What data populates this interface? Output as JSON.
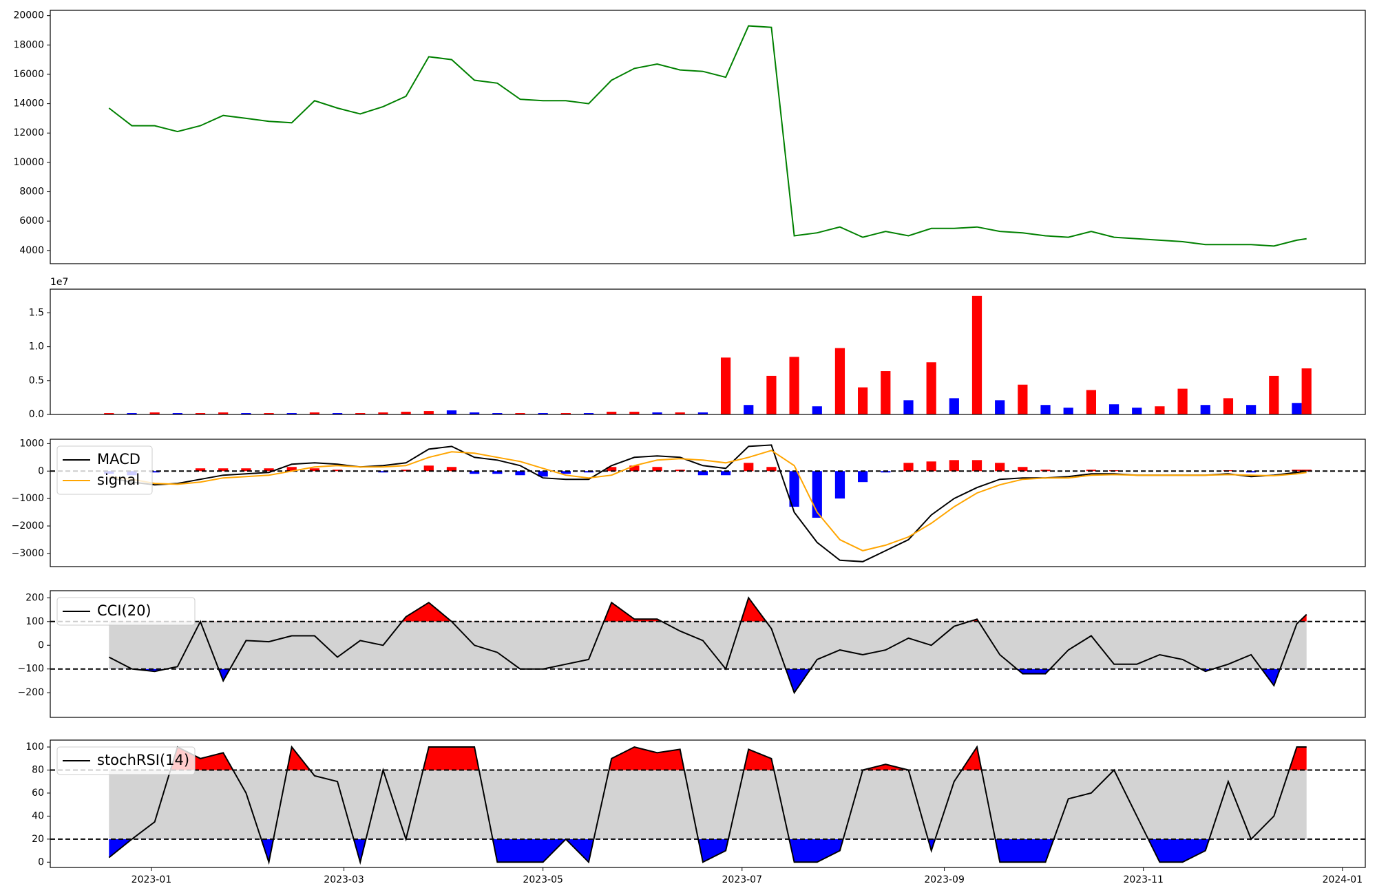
{
  "chart_data": [
    {
      "type": "line",
      "color": "green",
      "x": [
        -13,
        -6,
        1,
        8,
        15,
        22,
        29,
        36,
        43,
        50,
        57,
        64,
        71,
        78,
        85,
        92,
        99,
        106,
        113,
        120,
        127,
        134,
        141,
        148,
        155,
        162,
        169,
        176,
        183,
        190,
        197,
        204,
        211,
        218,
        225,
        232,
        239,
        246,
        253,
        260,
        267,
        274,
        281,
        288,
        295,
        302,
        309,
        316,
        323,
        330,
        337,
        344,
        351,
        354
      ],
      "values": [
        13700,
        12500,
        12500,
        12100,
        12500,
        13200,
        13000,
        12800,
        12700,
        14200,
        13700,
        13300,
        13800,
        14500,
        17200,
        17000,
        15600,
        15400,
        14300,
        14200,
        14200,
        14000,
        15600,
        16400,
        16700,
        16300,
        16200,
        15800,
        19300,
        19200,
        5000,
        5200,
        5600,
        4900,
        5300,
        5000,
        5500,
        5500,
        5600,
        5300,
        5200,
        5000,
        4900,
        5300,
        4900,
        4800,
        4700,
        4600,
        4400,
        4400,
        4400,
        4300,
        4700,
        4800
      ],
      "xlim": [
        -31,
        372
      ],
      "ylim": [
        3100,
        20360
      ],
      "yticks": [
        4000,
        6000,
        8000,
        10000,
        12000,
        14000,
        16000,
        18000,
        20000
      ]
    },
    {
      "type": "bar",
      "offset_text": "1e7",
      "x": [
        -13,
        -6,
        1,
        8,
        15,
        22,
        29,
        36,
        43,
        50,
        57,
        64,
        71,
        78,
        85,
        92,
        99,
        106,
        113,
        120,
        127,
        134,
        141,
        148,
        155,
        162,
        169,
        176,
        183,
        190,
        197,
        204,
        211,
        218,
        225,
        232,
        239,
        246,
        253,
        260,
        267,
        274,
        281,
        288,
        295,
        302,
        309,
        316,
        323,
        330,
        337,
        344,
        351,
        354
      ],
      "values": [
        0.02,
        0.02,
        0.03,
        0.02,
        0.02,
        0.03,
        0.02,
        0.02,
        0.02,
        0.03,
        0.02,
        0.02,
        0.03,
        0.04,
        0.05,
        0.06,
        0.03,
        0.02,
        0.02,
        0.02,
        0.02,
        0.02,
        0.04,
        0.04,
        0.03,
        0.03,
        0.03,
        0.84,
        0.14,
        0.57,
        0.85,
        0.12,
        0.98,
        0.4,
        0.64,
        0.21,
        0.77,
        0.24,
        1.75,
        0.21,
        0.44,
        0.14,
        0.1,
        0.36,
        0.15,
        0.1,
        0.12,
        0.38,
        0.14,
        0.24,
        0.14,
        0.57,
        0.17,
        0.68
      ],
      "colors": [
        "red",
        "blue",
        "red",
        "blue",
        "red",
        "red",
        "blue",
        "red",
        "blue",
        "red",
        "blue",
        "red",
        "red",
        "red",
        "red",
        "blue",
        "blue",
        "blue",
        "red",
        "blue",
        "red",
        "blue",
        "red",
        "red",
        "blue",
        "red",
        "blue",
        "red",
        "blue",
        "red",
        "red",
        "blue",
        "red",
        "red",
        "red",
        "blue",
        "red",
        "blue",
        "red",
        "blue",
        "red",
        "blue",
        "blue",
        "red",
        "blue",
        "blue",
        "red",
        "red",
        "blue",
        "red",
        "blue",
        "red",
        "blue",
        "red"
      ],
      "xlim": [
        -31,
        372
      ],
      "ylim": [
        0,
        1.85
      ],
      "yticks": [
        {
          "value": 0,
          "label": "0.0"
        },
        0.5,
        {
          "value": 1,
          "label": "1.0"
        },
        1.5
      ]
    },
    {
      "type": "line",
      "x": [
        -13,
        -6,
        1,
        8,
        15,
        22,
        29,
        36,
        43,
        50,
        57,
        64,
        71,
        78,
        85,
        92,
        99,
        106,
        113,
        120,
        127,
        134,
        141,
        148,
        155,
        162,
        169,
        176,
        183,
        190,
        197,
        204,
        211,
        218,
        225,
        232,
        239,
        246,
        253,
        260,
        267,
        274,
        281,
        288,
        295,
        302,
        309,
        316,
        323,
        330,
        337,
        344,
        351,
        354
      ],
      "series": [
        {
          "name": "MACD",
          "color": "black",
          "values": [
            -250,
            -400,
            -500,
            -450,
            -300,
            -150,
            -100,
            -50,
            250,
            300,
            250,
            150,
            200,
            300,
            800,
            900,
            500,
            400,
            200,
            -250,
            -300,
            -300,
            200,
            500,
            550,
            500,
            200,
            100,
            900,
            950,
            -1500,
            -2600,
            -3250,
            -3300,
            -2900,
            -2500,
            -1600,
            -1000,
            -600,
            -300,
            -250,
            -250,
            -200,
            -100,
            -100,
            -150,
            -150,
            -150,
            -150,
            -100,
            -200,
            -150,
            -50,
            0
          ]
        },
        {
          "name": "signal",
          "color": "orange",
          "values": [
            -200,
            -300,
            -450,
            -480,
            -400,
            -250,
            -200,
            -150,
            0,
            150,
            200,
            150,
            150,
            200,
            500,
            700,
            650,
            500,
            350,
            100,
            -150,
            -250,
            -150,
            200,
            400,
            450,
            400,
            300,
            500,
            750,
            200,
            -1500,
            -2500,
            -2900,
            -2700,
            -2400,
            -1900,
            -1300,
            -800,
            -500,
            -300,
            -250,
            -250,
            -150,
            -130,
            -150,
            -150,
            -150,
            -150,
            -130,
            -150,
            -170,
            -100,
            -50
          ]
        }
      ],
      "histogram": {
        "up_color": "red",
        "down_color": "blue",
        "values": [
          -100,
          -150,
          -50,
          0,
          100,
          100,
          100,
          100,
          150,
          100,
          50,
          0,
          -50,
          50,
          200,
          150,
          -100,
          -100,
          -150,
          -200,
          -100,
          -50,
          150,
          200,
          150,
          50,
          -150,
          -150,
          300,
          150,
          -1300,
          -1700,
          -1000,
          -400,
          -50,
          300,
          350,
          400,
          400,
          300,
          150,
          50,
          0,
          50,
          30,
          0,
          0,
          0,
          0,
          30,
          -50,
          0,
          50,
          50
        ]
      },
      "hlines": [
        0
      ],
      "xlim": [
        -31,
        372
      ],
      "ylim": [
        -3480,
        1160
      ],
      "yticks": [
        {
          "value": -3000,
          "label": "−3000"
        },
        {
          "value": -2000,
          "label": "−2000"
        },
        {
          "value": -1000,
          "label": "−1000"
        },
        0,
        1000
      ]
    },
    {
      "type": "band",
      "x": [
        -13,
        -6,
        1,
        8,
        15,
        22,
        29,
        36,
        43,
        50,
        57,
        64,
        71,
        78,
        85,
        92,
        99,
        106,
        113,
        120,
        127,
        134,
        141,
        148,
        155,
        162,
        169,
        176,
        183,
        190,
        197,
        204,
        211,
        218,
        225,
        232,
        239,
        246,
        253,
        260,
        267,
        274,
        281,
        288,
        295,
        302,
        309,
        316,
        323,
        330,
        337,
        344,
        351,
        354
      ],
      "series": [
        {
          "name": "CCI(20)",
          "color": "black",
          "values": [
            -50,
            -100,
            -110,
            -90,
            100,
            -150,
            20,
            15,
            40,
            40,
            -50,
            20,
            0,
            120,
            180,
            100,
            0,
            -30,
            -100,
            -100,
            -80,
            -60,
            180,
            110,
            110,
            60,
            20,
            -100,
            200,
            70,
            -200,
            -60,
            -20,
            -40,
            -20,
            30,
            0,
            80,
            110,
            -40,
            -120,
            -120,
            -20,
            40,
            -80,
            -80,
            -40,
            -60,
            -110,
            -80,
            -40,
            -170,
            90,
            130
          ]
        }
      ],
      "bands": [
        -100,
        100
      ],
      "band_color": "lightgray",
      "above_color": "red",
      "below_color": "blue",
      "xlim": [
        -31,
        372
      ],
      "ylim": [
        -304,
        230
      ],
      "yticks": [
        {
          "value": -200,
          "label": "−200"
        },
        {
          "value": -100,
          "label": "−100"
        },
        0,
        100,
        200
      ]
    },
    {
      "type": "band",
      "x": [
        -13,
        -6,
        1,
        8,
        15,
        22,
        29,
        36,
        43,
        50,
        57,
        64,
        71,
        78,
        85,
        92,
        99,
        106,
        113,
        120,
        127,
        134,
        141,
        148,
        155,
        162,
        169,
        176,
        183,
        190,
        197,
        204,
        211,
        218,
        225,
        232,
        239,
        246,
        253,
        260,
        267,
        274,
        281,
        288,
        295,
        302,
        309,
        316,
        323,
        330,
        337,
        344,
        351,
        354
      ],
      "series": [
        {
          "name": "stochRSI(14)",
          "color": "black",
          "values": [
            4,
            20,
            35,
            100,
            90,
            95,
            60,
            0,
            100,
            75,
            70,
            0,
            80,
            20,
            100,
            100,
            100,
            0,
            0,
            0,
            20,
            0,
            90,
            100,
            95,
            98,
            0,
            10,
            98,
            90,
            0,
            0,
            10,
            80,
            85,
            80,
            10,
            70,
            100,
            0,
            0,
            0,
            55,
            60,
            80,
            40,
            0,
            0,
            10,
            70,
            20,
            40,
            100,
            100
          ]
        }
      ],
      "bands": [
        20,
        80
      ],
      "band_color": "lightgray",
      "above_color": "red",
      "below_color": "blue",
      "xlim": [
        -31,
        372
      ],
      "ylim": [
        -4.6,
        106
      ],
      "yticks": [
        0,
        20,
        40,
        60,
        80,
        100
      ],
      "xticks": [
        {
          "value": 0,
          "label": "2023-01"
        },
        {
          "value": 59,
          "label": "2023-03"
        },
        {
          "value": 120,
          "label": "2023-05"
        },
        {
          "value": 181,
          "label": "2023-07"
        },
        {
          "value": 243,
          "label": "2023-09"
        },
        {
          "value": 304,
          "label": "2023-11"
        },
        {
          "value": 365,
          "label": "2024-01"
        }
      ]
    }
  ]
}
